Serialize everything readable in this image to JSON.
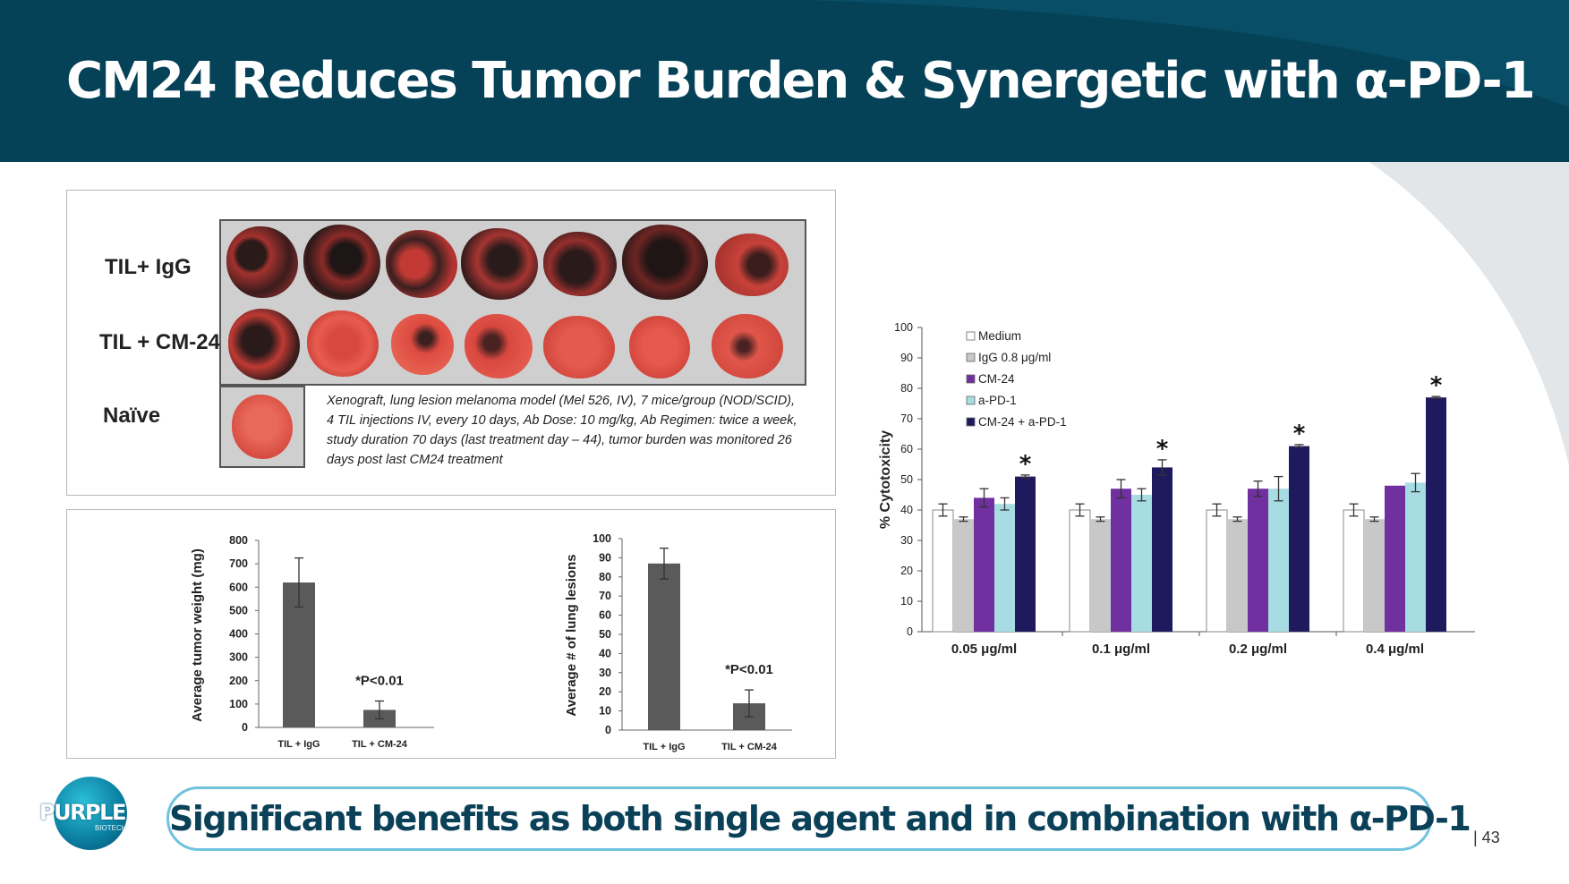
{
  "slide": {
    "title": "CM24 Reduces Tumor Burden & Synergetic with α-PD-1",
    "footer_message": "Significant benefits as both single agent and in combination with α-PD-1",
    "page_number": "| 43",
    "logo_text": "PURPLE",
    "logo_subtext": "BIOTECH"
  },
  "photo_panel": {
    "row_labels": [
      "TIL+ IgG",
      "TIL + CM-24",
      "Naïve"
    ],
    "caption": "Xenograft, lung lesion melanoma model (Mel 526, IV), 7 mice/group (NOD/SCID), 4 TIL injections IV, every 10 days, Ab Dose: 10 mg/kg, Ab Regimen: twice a week, study duration 70 days (last treatment day – 44), tumor burden was monitored 26 days post last CM24 treatment"
  },
  "chart_data": [
    {
      "type": "bar",
      "categories": [
        "TIL + IgG",
        "TIL + CM-24"
      ],
      "values": [
        620,
        75
      ],
      "errors": [
        105,
        38
      ],
      "ylabel": "Average tumor weight (mg)",
      "ylim": [
        0,
        800
      ],
      "yticks": [
        0,
        100,
        200,
        300,
        400,
        500,
        600,
        700,
        800
      ],
      "annotation": "*P<0.01",
      "bar_color": "#5a5a5a"
    },
    {
      "type": "bar",
      "categories": [
        "TIL + IgG",
        "TIL + CM-24"
      ],
      "values": [
        87,
        14
      ],
      "errors": [
        8,
        7
      ],
      "ylabel": "Average # of lung lesions",
      "ylim": [
        0,
        100
      ],
      "yticks": [
        0,
        10,
        20,
        30,
        40,
        50,
        60,
        70,
        80,
        90,
        100
      ],
      "annotation": "*P<0.01",
      "bar_color": "#5a5a5a"
    },
    {
      "type": "bar",
      "categories": [
        "0.05 μg/ml",
        "0.1 μg/ml",
        "0.2 μg/ml",
        "0.4 μg/ml"
      ],
      "series": [
        {
          "name": "Medium",
          "values": [
            40,
            40,
            40,
            40
          ],
          "errors": [
            2,
            2,
            2,
            2
          ],
          "color": "#ffffff"
        },
        {
          "name": "IgG 0.8 μg/ml",
          "values": [
            37,
            37,
            37,
            37
          ],
          "errors": [
            0.7,
            0.7,
            0.7,
            0.7
          ],
          "color": "#c8c8c8"
        },
        {
          "name": "CM-24",
          "values": [
            44,
            47,
            47,
            48
          ],
          "errors": [
            3,
            3,
            2.5,
            0
          ],
          "color": "#7030a0"
        },
        {
          "name": "a-PD-1",
          "values": [
            42,
            45,
            47,
            49
          ],
          "errors": [
            2,
            2,
            4,
            3
          ],
          "color": "#a8dce3"
        },
        {
          "name": "CM-24 + a-PD-1",
          "values": [
            51,
            54,
            61,
            77
          ],
          "errors": [
            0.5,
            2.5,
            0.5,
            0.3
          ],
          "color": "#1f1a5e"
        }
      ],
      "significance_marks": [
        "*",
        "*",
        "*",
        "*"
      ],
      "ylabel": "% Cytotoxicity",
      "ylim": [
        0,
        100
      ],
      "yticks": [
        0,
        10,
        20,
        30,
        40,
        50,
        60,
        70,
        80,
        90,
        100
      ],
      "legend_position": "top-left"
    }
  ]
}
